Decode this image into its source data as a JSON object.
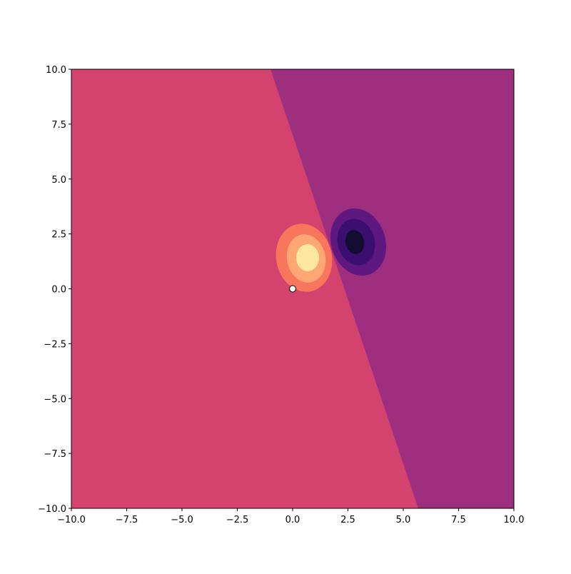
{
  "chart_data": {
    "type": "contour",
    "xlim": [
      -10,
      10
    ],
    "ylim": [
      -10,
      10
    ],
    "xticks": [
      {
        "value": -10,
        "label": "−10.0"
      },
      {
        "value": -7.5,
        "label": "−7.5"
      },
      {
        "value": -5,
        "label": "−5.0"
      },
      {
        "value": -2.5,
        "label": "−2.5"
      },
      {
        "value": 0,
        "label": "0.0"
      },
      2.5,
      {
        "value": 5,
        "label": "5.0"
      },
      7.5,
      {
        "value": 10,
        "label": "10.0"
      }
    ],
    "yticks": [
      {
        "value": -10,
        "label": "−10.0"
      },
      {
        "value": -7.5,
        "label": "−7.5"
      },
      {
        "value": -5,
        "label": "−5.0"
      },
      {
        "value": -2.5,
        "label": "−2.5"
      },
      {
        "value": 0,
        "label": "0.0"
      },
      2.5,
      {
        "value": 5,
        "label": "5.0"
      },
      7.5,
      {
        "value": 10,
        "label": "10.0"
      }
    ],
    "colors": [
      "#120d31",
      "#3b0f70",
      "#5f187f",
      "#9e2f7f",
      "#d3436e",
      "#f8765c",
      "#fea772",
      "#fce79f"
    ],
    "point": {
      "x": 0,
      "y": 0,
      "color": "#ffffff"
    }
  }
}
